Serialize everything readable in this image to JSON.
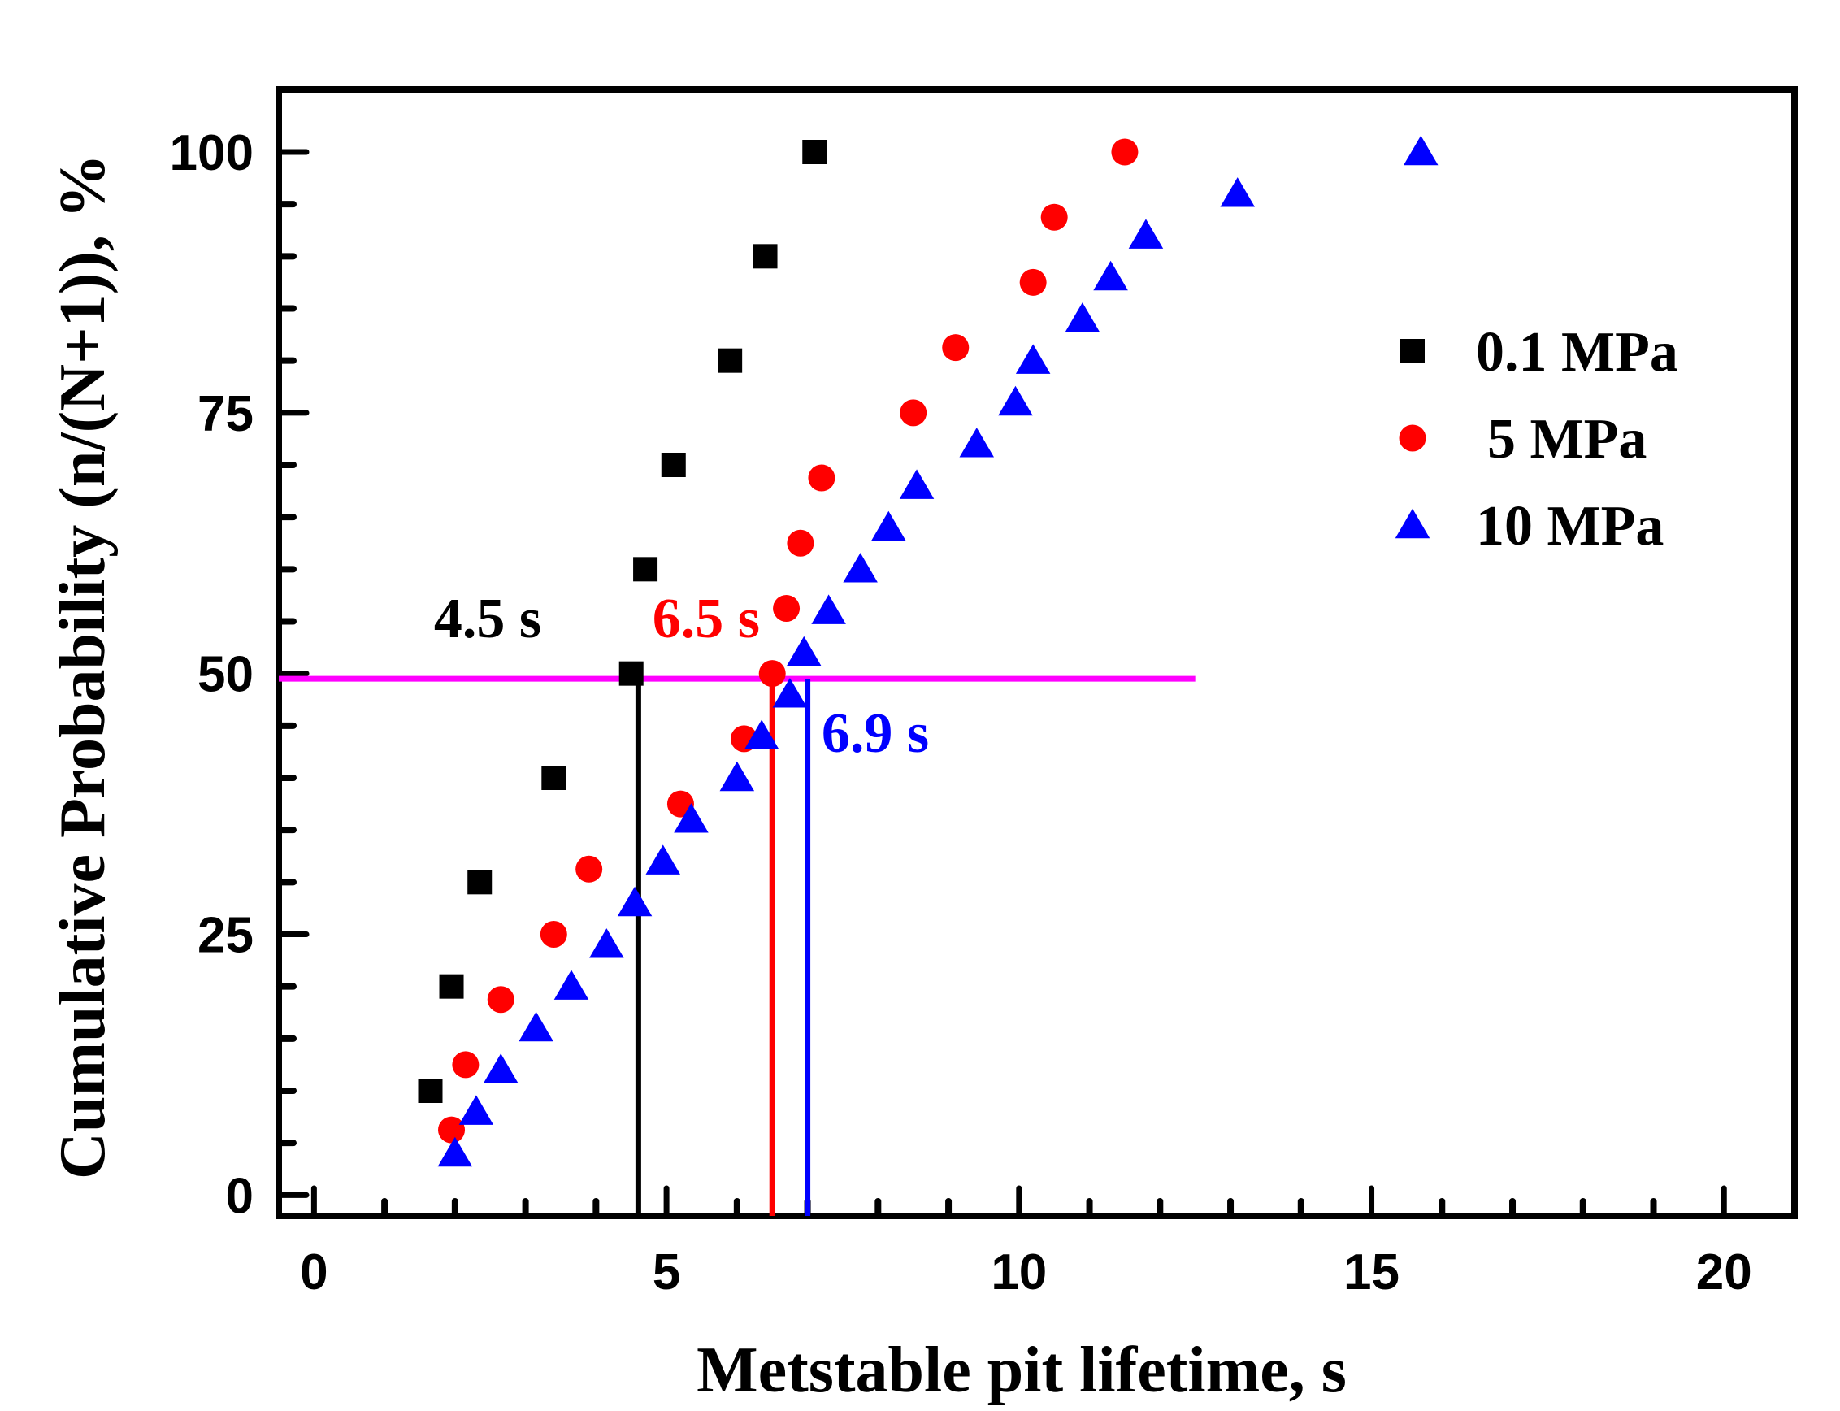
{
  "chart_data": {
    "type": "scatter",
    "xlabel": "Metstable pit lifetime, s",
    "ylabel": "Cumulative Probability (n/(N+1)), %",
    "xlim": [
      -0.5,
      21
    ],
    "ylim": [
      -2,
      106
    ],
    "xticks": [
      0,
      5,
      10,
      15,
      20
    ],
    "yticks": [
      0,
      25,
      50,
      75,
      100
    ],
    "legend_position": "top-right",
    "series": [
      {
        "name": "0.1 MPa",
        "marker": "square",
        "color": "#000000",
        "x": [
          1.65,
          1.95,
          2.35,
          3.4,
          4.5,
          4.7,
          5.1,
          5.9,
          6.4,
          7.1
        ],
        "y": [
          10,
          20,
          30,
          40,
          50,
          60,
          70,
          80,
          90,
          100
        ]
      },
      {
        "name": "5 MPa",
        "marker": "circle",
        "color": "#ff0000",
        "x": [
          1.95,
          2.15,
          2.65,
          3.4,
          3.9,
          5.2,
          6.1,
          6.5,
          6.7,
          6.9,
          7.2,
          8.5,
          9.1,
          10.2,
          10.5,
          11.5
        ],
        "y": [
          6.25,
          12.5,
          18.75,
          25,
          31.25,
          37.5,
          43.75,
          50,
          56.25,
          62.5,
          68.75,
          75,
          81.25,
          87.5,
          93.75,
          100
        ]
      },
      {
        "name": "10 MPa",
        "marker": "triangle",
        "color": "#0000ff",
        "x": [
          2.0,
          2.3,
          2.65,
          3.15,
          3.65,
          4.15,
          4.55,
          4.95,
          5.35,
          6.0,
          6.35,
          6.75,
          6.95,
          7.3,
          7.75,
          8.15,
          8.55,
          9.4,
          9.95,
          10.2,
          10.9,
          11.3,
          11.8,
          13.1,
          15.7
        ],
        "y": [
          4,
          8,
          12,
          16,
          20,
          24,
          28,
          32,
          36,
          40,
          44,
          48,
          52,
          56,
          60,
          64,
          68,
          72,
          76,
          80,
          84,
          88,
          92,
          96,
          100
        ]
      }
    ],
    "reference_lines": [
      {
        "orientation": "horizontal",
        "y": 49.5,
        "x_from": -0.5,
        "x_to": 12.5,
        "color": "#ff00ff"
      },
      {
        "orientation": "vertical",
        "x": 4.6,
        "y_from": -2,
        "y_to": 49.5,
        "color": "#000000"
      },
      {
        "orientation": "vertical",
        "x": 6.5,
        "y_from": -2,
        "y_to": 49.5,
        "color": "#ff0000"
      },
      {
        "orientation": "vertical",
        "x": 7.0,
        "y_from": -2,
        "y_to": 49.5,
        "color": "#0000ff"
      }
    ],
    "annotations": [
      {
        "text": "4.5 s",
        "x": 1.7,
        "y": 53.5,
        "color": "#000000"
      },
      {
        "text": "6.5 s",
        "x": 4.8,
        "y": 53.5,
        "color": "#ff0000"
      },
      {
        "text": "6.9 s",
        "x": 7.2,
        "y": 42.5,
        "color": "#0000ff"
      }
    ]
  }
}
